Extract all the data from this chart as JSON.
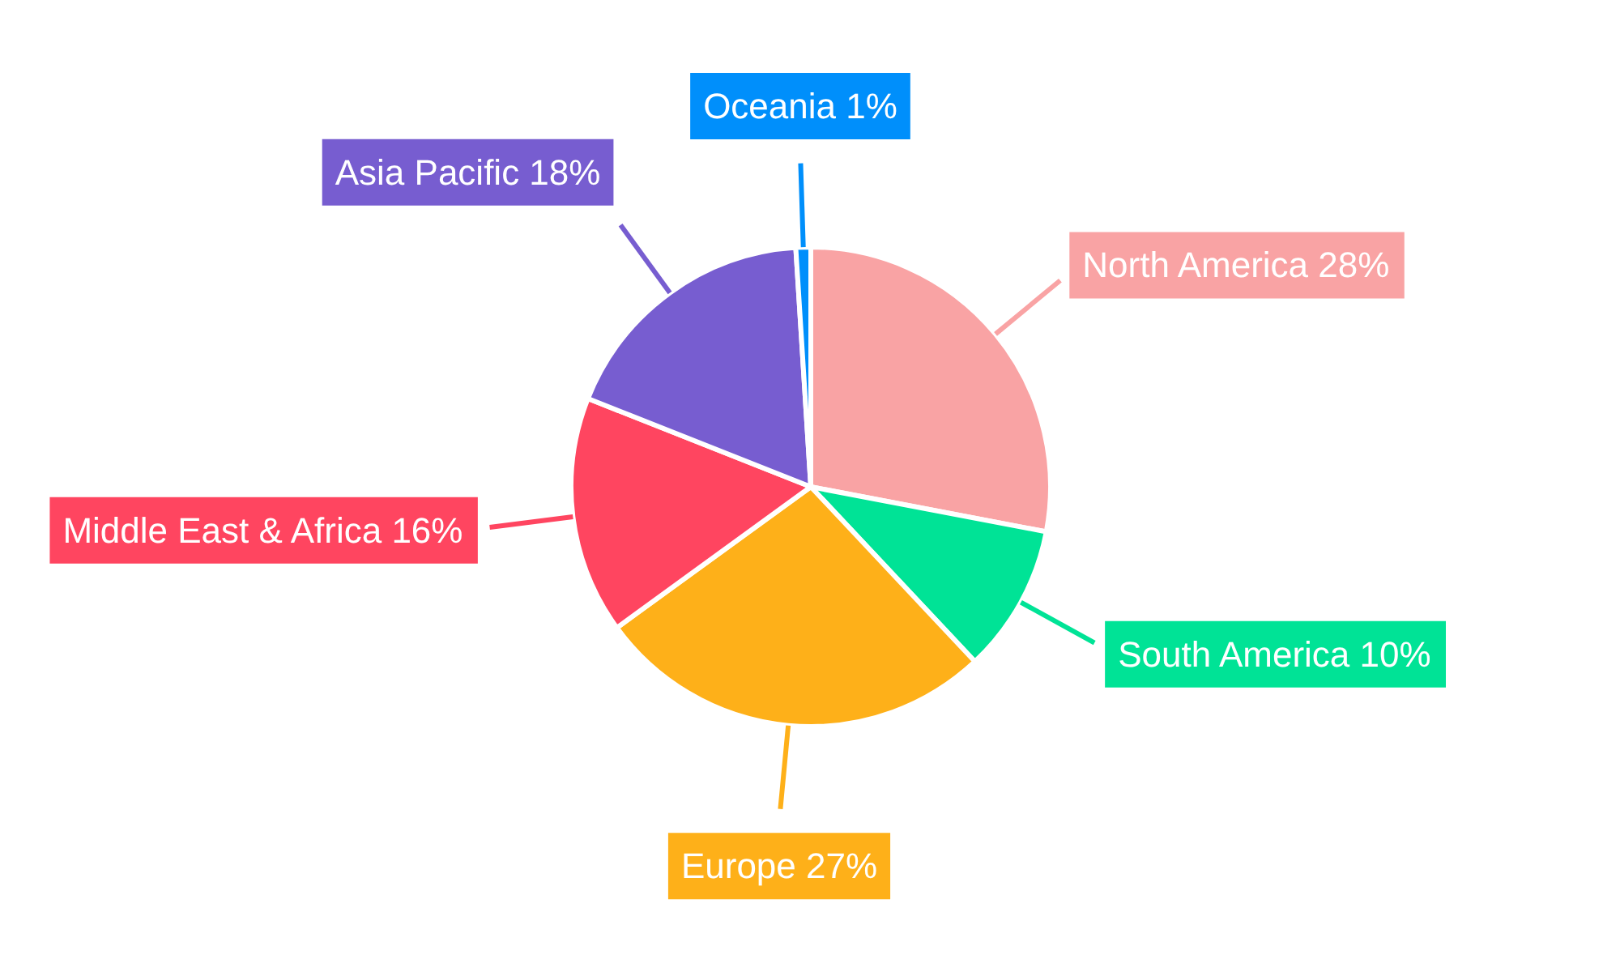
{
  "chart_data": {
    "type": "pie",
    "categories": [
      "North America",
      "South America",
      "Europe",
      "Middle East & Africa",
      "Asia Pacific",
      "Oceania"
    ],
    "values": [
      28,
      10,
      27,
      16,
      18,
      1
    ],
    "value_labels": [
      "28%",
      "10%",
      "27%",
      "16%",
      "18%",
      "1%"
    ],
    "colors": [
      "#f9a3a4",
      "#00e396",
      "#feb019",
      "#ff4560",
      "#775dd0",
      "#008ffb"
    ]
  }
}
